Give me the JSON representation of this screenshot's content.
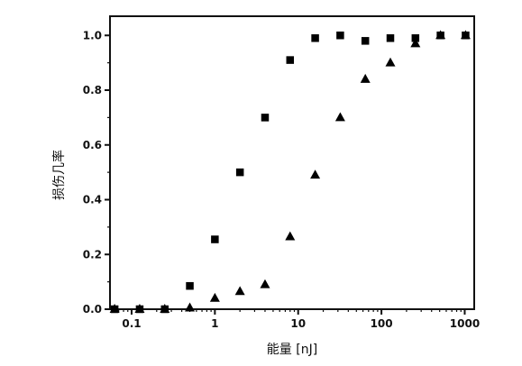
{
  "chart_data": {
    "type": "scatter",
    "title": "",
    "xlabel": "能量 [nJ]",
    "ylabel": "损伤几率",
    "xscale": "log",
    "xlim": [
      0.055,
      1300
    ],
    "ylim": [
      0,
      1.07
    ],
    "grid": false,
    "legend": "none",
    "x_ticks": [
      {
        "value": 0.1,
        "label": "0.1"
      },
      {
        "value": 1,
        "label": "1"
      },
      {
        "value": 10,
        "label": "10"
      },
      {
        "value": 100,
        "label": "100"
      },
      {
        "value": 1000,
        "label": "1000"
      }
    ],
    "y_ticks": [
      {
        "value": 0.0,
        "label": "0.0"
      },
      {
        "value": 0.2,
        "label": "0.2"
      },
      {
        "value": 0.4,
        "label": "0.4"
      },
      {
        "value": 0.6,
        "label": "0.6"
      },
      {
        "value": 0.8,
        "label": "0.8"
      },
      {
        "value": 1.0,
        "label": "1.0"
      }
    ],
    "series": [
      {
        "marker": "square",
        "color": "#000000",
        "points": [
          {
            "x": 0.0625,
            "y": 0.0
          },
          {
            "x": 0.125,
            "y": 0.0
          },
          {
            "x": 0.25,
            "y": 0.0
          },
          {
            "x": 0.5,
            "y": 0.085
          },
          {
            "x": 1,
            "y": 0.255
          },
          {
            "x": 2,
            "y": 0.5
          },
          {
            "x": 4,
            "y": 0.7
          },
          {
            "x": 8,
            "y": 0.91
          },
          {
            "x": 16,
            "y": 0.99
          },
          {
            "x": 32,
            "y": 1.0
          },
          {
            "x": 64,
            "y": 0.98
          },
          {
            "x": 128,
            "y": 0.99
          },
          {
            "x": 256,
            "y": 0.99
          },
          {
            "x": 512,
            "y": 1.0
          },
          {
            "x": 1024,
            "y": 1.0
          }
        ]
      },
      {
        "marker": "triangle",
        "color": "#000000",
        "points": [
          {
            "x": 0.0625,
            "y": 0.0
          },
          {
            "x": 0.125,
            "y": 0.0
          },
          {
            "x": 0.25,
            "y": 0.0
          },
          {
            "x": 0.5,
            "y": 0.005
          },
          {
            "x": 1,
            "y": 0.04
          },
          {
            "x": 2,
            "y": 0.065
          },
          {
            "x": 4,
            "y": 0.09
          },
          {
            "x": 8,
            "y": 0.265
          },
          {
            "x": 16,
            "y": 0.49
          },
          {
            "x": 32,
            "y": 0.7
          },
          {
            "x": 64,
            "y": 0.84
          },
          {
            "x": 128,
            "y": 0.9
          },
          {
            "x": 256,
            "y": 0.97
          },
          {
            "x": 512,
            "y": 1.0
          },
          {
            "x": 1024,
            "y": 1.0
          }
        ]
      }
    ]
  }
}
